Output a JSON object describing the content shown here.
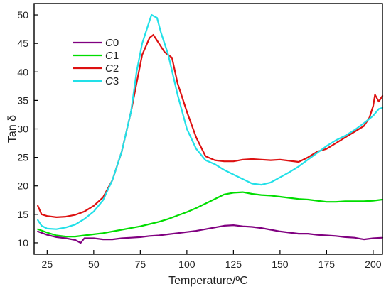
{
  "chart_data": {
    "type": "line",
    "xlabel": "Temperature/ºC",
    "ylabel": "Tan δ",
    "xlim": [
      18,
      205
    ],
    "ylim": [
      8,
      52
    ],
    "x_ticks": [
      25,
      50,
      75,
      100,
      125,
      150,
      175,
      200
    ],
    "y_ticks": [
      10,
      15,
      20,
      25,
      30,
      35,
      40,
      45,
      50
    ],
    "grid": false,
    "legend_position": "top-left",
    "series": [
      {
        "name": "C0",
        "legend_italic": "C",
        "legend_suffix": "0",
        "color": "#800080",
        "points": [
          [
            20,
            12.0
          ],
          [
            25,
            11.4
          ],
          [
            30,
            11.0
          ],
          [
            35,
            10.8
          ],
          [
            40,
            10.5
          ],
          [
            43,
            10.0
          ],
          [
            45,
            10.8
          ],
          [
            50,
            10.8
          ],
          [
            55,
            10.6
          ],
          [
            60,
            10.6
          ],
          [
            65,
            10.8
          ],
          [
            70,
            10.9
          ],
          [
            75,
            11.0
          ],
          [
            80,
            11.2
          ],
          [
            85,
            11.3
          ],
          [
            90,
            11.5
          ],
          [
            95,
            11.7
          ],
          [
            100,
            11.9
          ],
          [
            105,
            12.1
          ],
          [
            110,
            12.4
          ],
          [
            115,
            12.7
          ],
          [
            120,
            13.0
          ],
          [
            125,
            13.1
          ],
          [
            130,
            12.9
          ],
          [
            135,
            12.8
          ],
          [
            140,
            12.6
          ],
          [
            145,
            12.3
          ],
          [
            150,
            12.0
          ],
          [
            155,
            11.8
          ],
          [
            160,
            11.6
          ],
          [
            165,
            11.6
          ],
          [
            170,
            11.4
          ],
          [
            175,
            11.3
          ],
          [
            180,
            11.2
          ],
          [
            185,
            11.0
          ],
          [
            190,
            10.9
          ],
          [
            195,
            10.6
          ],
          [
            200,
            10.8
          ],
          [
            205,
            10.9
          ]
        ]
      },
      {
        "name": "C1",
        "legend_italic": "C",
        "legend_suffix": "1",
        "color": "#00dd00",
        "points": [
          [
            20,
            12.4
          ],
          [
            25,
            11.8
          ],
          [
            30,
            11.3
          ],
          [
            35,
            11.1
          ],
          [
            40,
            11.1
          ],
          [
            45,
            11.3
          ],
          [
            50,
            11.5
          ],
          [
            55,
            11.7
          ],
          [
            60,
            12.0
          ],
          [
            65,
            12.3
          ],
          [
            70,
            12.6
          ],
          [
            75,
            12.9
          ],
          [
            80,
            13.3
          ],
          [
            85,
            13.7
          ],
          [
            90,
            14.2
          ],
          [
            95,
            14.8
          ],
          [
            100,
            15.4
          ],
          [
            105,
            16.1
          ],
          [
            110,
            16.9
          ],
          [
            115,
            17.7
          ],
          [
            120,
            18.5
          ],
          [
            125,
            18.8
          ],
          [
            130,
            18.9
          ],
          [
            135,
            18.6
          ],
          [
            140,
            18.4
          ],
          [
            145,
            18.3
          ],
          [
            150,
            18.1
          ],
          [
            155,
            17.9
          ],
          [
            160,
            17.7
          ],
          [
            165,
            17.6
          ],
          [
            170,
            17.4
          ],
          [
            175,
            17.2
          ],
          [
            180,
            17.2
          ],
          [
            185,
            17.3
          ],
          [
            190,
            17.3
          ],
          [
            195,
            17.3
          ],
          [
            200,
            17.4
          ],
          [
            205,
            17.6
          ]
        ]
      },
      {
        "name": "C2",
        "legend_italic": "C",
        "legend_suffix": "2",
        "color": "#dd1111",
        "points": [
          [
            20,
            16.5
          ],
          [
            22,
            15.0
          ],
          [
            25,
            14.7
          ],
          [
            30,
            14.5
          ],
          [
            35,
            14.6
          ],
          [
            40,
            14.9
          ],
          [
            45,
            15.5
          ],
          [
            50,
            16.5
          ],
          [
            55,
            18.0
          ],
          [
            60,
            21.0
          ],
          [
            65,
            26.0
          ],
          [
            70,
            33.0
          ],
          [
            73,
            38.0
          ],
          [
            76,
            43.0
          ],
          [
            80,
            46.0
          ],
          [
            82,
            46.5
          ],
          [
            85,
            45.0
          ],
          [
            88,
            43.5
          ],
          [
            92,
            42.5
          ],
          [
            95,
            38.0
          ],
          [
            100,
            33.0
          ],
          [
            105,
            28.5
          ],
          [
            110,
            25.2
          ],
          [
            115,
            24.5
          ],
          [
            120,
            24.3
          ],
          [
            125,
            24.3
          ],
          [
            130,
            24.6
          ],
          [
            135,
            24.7
          ],
          [
            140,
            24.6
          ],
          [
            145,
            24.5
          ],
          [
            150,
            24.6
          ],
          [
            155,
            24.4
          ],
          [
            160,
            24.2
          ],
          [
            165,
            25.0
          ],
          [
            170,
            26.0
          ],
          [
            175,
            26.5
          ],
          [
            180,
            27.5
          ],
          [
            185,
            28.5
          ],
          [
            190,
            29.5
          ],
          [
            195,
            30.5
          ],
          [
            198,
            32.0
          ],
          [
            200,
            34.0
          ],
          [
            201,
            36.0
          ],
          [
            203,
            34.8
          ],
          [
            205,
            35.8
          ]
        ]
      },
      {
        "name": "C3",
        "legend_italic": "C",
        "legend_suffix": "3",
        "color": "#22e0e8",
        "points": [
          [
            20,
            14.0
          ],
          [
            22,
            13.0
          ],
          [
            25,
            12.5
          ],
          [
            30,
            12.4
          ],
          [
            35,
            12.7
          ],
          [
            40,
            13.2
          ],
          [
            45,
            14.2
          ],
          [
            50,
            15.5
          ],
          [
            55,
            17.5
          ],
          [
            60,
            21.0
          ],
          [
            65,
            26.0
          ],
          [
            70,
            33.0
          ],
          [
            73,
            40.0
          ],
          [
            76,
            45.0
          ],
          [
            79,
            48.0
          ],
          [
            81,
            50.0
          ],
          [
            84,
            49.5
          ],
          [
            86,
            47.0
          ],
          [
            90,
            43.0
          ],
          [
            95,
            36.0
          ],
          [
            100,
            30.0
          ],
          [
            105,
            26.5
          ],
          [
            110,
            24.5
          ],
          [
            115,
            23.8
          ],
          [
            120,
            22.8
          ],
          [
            125,
            22.0
          ],
          [
            130,
            21.2
          ],
          [
            135,
            20.4
          ],
          [
            140,
            20.2
          ],
          [
            145,
            20.6
          ],
          [
            150,
            21.5
          ],
          [
            155,
            22.4
          ],
          [
            160,
            23.4
          ],
          [
            165,
            24.6
          ],
          [
            170,
            25.8
          ],
          [
            175,
            27.0
          ],
          [
            180,
            28.0
          ],
          [
            185,
            28.8
          ],
          [
            190,
            29.8
          ],
          [
            195,
            31.0
          ],
          [
            200,
            32.3
          ],
          [
            203,
            33.5
          ],
          [
            205,
            33.7
          ]
        ]
      }
    ]
  }
}
